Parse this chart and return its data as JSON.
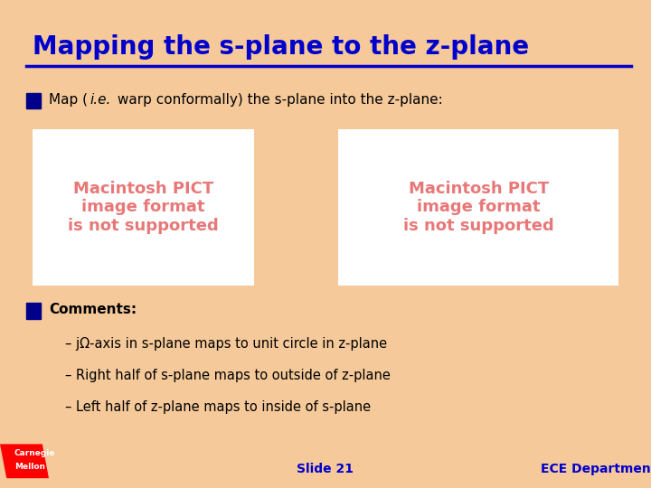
{
  "bg_color": "#f5c99a",
  "title": "Mapping the s-plane to the z-plane",
  "title_color": "#0000cc",
  "title_fontsize": 20,
  "divider_color": "#0000cc",
  "bullet_color": "#00008b",
  "bullet2_text": "Comments:",
  "sub_bullets": [
    "– jΩ-axis in s-plane maps to unit circle in z-plane",
    "– Right half of s-plane maps to outside of z-plane",
    "– Left half of z-plane maps to inside of s-plane"
  ],
  "pict_text": "Macintosh PICT\nimage format\nis not supported",
  "pict_text_color": "#e87878",
  "pict_bg_color": "#ffffff",
  "footer_slide": "Slide 21",
  "footer_dept": "ECE Department",
  "footer_color": "#0000cc"
}
